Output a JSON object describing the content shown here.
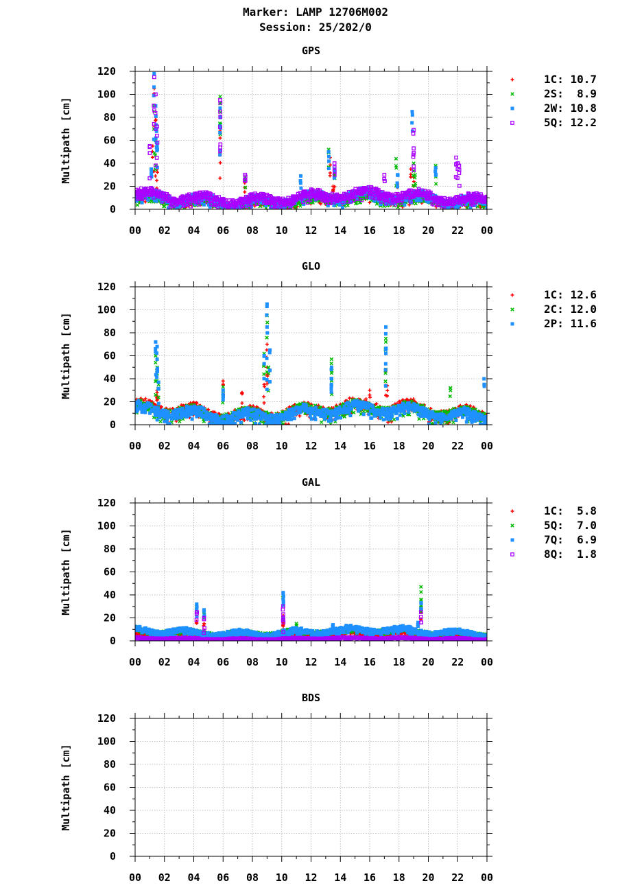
{
  "header": {
    "line1": "Marker: LAMP 12706M002",
    "line2": "Session: 25/202/0"
  },
  "chart_data": [
    {
      "type": "scatter",
      "title": "GPS",
      "ylabel": "Multipath [cm]",
      "xlabel": "",
      "xlim": [
        0,
        24
      ],
      "ylim": [
        0,
        120
      ],
      "xticks": [
        "00",
        "02",
        "04",
        "06",
        "08",
        "10",
        "12",
        "14",
        "16",
        "18",
        "20",
        "22",
        "00"
      ],
      "yticks": [
        0,
        20,
        40,
        60,
        80,
        100,
        120
      ],
      "grid": true,
      "legend_position": "right",
      "series": [
        {
          "name": "1C",
          "label": "1C: 10.7",
          "color": "#ff0000",
          "marker": "plus",
          "background_level": 8,
          "background_spread": 5,
          "spikes": [
            [
              1.2,
              55
            ],
            [
              1.3,
              105
            ],
            [
              1.4,
              80
            ],
            [
              1.5,
              35
            ],
            [
              5.8,
              68
            ],
            [
              5.8,
              62
            ],
            [
              7.5,
              25
            ],
            [
              13.3,
              45
            ],
            [
              13.5,
              20
            ],
            [
              13.6,
              35
            ],
            [
              18.8,
              35
            ],
            [
              19.0,
              28
            ],
            [
              17.9,
              22
            ]
          ]
        },
        {
          "name": "2S",
          "label": "2S:  8.9",
          "color": "#00bb00",
          "marker": "cross",
          "background_level": 7,
          "background_spread": 4,
          "spikes": [
            [
              1.3,
              90
            ],
            [
              1.4,
              60
            ],
            [
              5.8,
              98
            ],
            [
              5.8,
              92
            ],
            [
              7.5,
              28
            ],
            [
              13.2,
              52
            ],
            [
              13.6,
              30
            ],
            [
              17.8,
              44
            ],
            [
              19.0,
              40
            ],
            [
              19.1,
              30
            ],
            [
              20.5,
              38
            ]
          ]
        },
        {
          "name": "2W",
          "label": "2W: 10.8",
          "color": "#1e90ff",
          "marker": "square",
          "background_level": 10,
          "background_spread": 6,
          "spikes": [
            [
              1.1,
              35
            ],
            [
              1.3,
              118
            ],
            [
              1.4,
              90
            ],
            [
              1.45,
              70
            ],
            [
              1.5,
              55
            ],
            [
              5.8,
              88
            ],
            [
              5.8,
              80
            ],
            [
              11.3,
              29
            ],
            [
              13.2,
              50
            ],
            [
              13.6,
              35
            ],
            [
              18.9,
              85
            ],
            [
              17.9,
              30
            ],
            [
              20.5,
              36
            ]
          ]
        },
        {
          "name": "5Q",
          "label": "5Q: 12.2",
          "color": "#aa00ff",
          "marker": "open-square",
          "background_level": 11,
          "background_spread": 6,
          "spikes": [
            [
              1.0,
              55
            ],
            [
              1.3,
              115
            ],
            [
              1.4,
              100
            ],
            [
              1.5,
              72
            ],
            [
              5.8,
              95
            ],
            [
              5.8,
              85
            ],
            [
              7.5,
              30
            ],
            [
              13.6,
              40
            ],
            [
              17.0,
              30
            ],
            [
              19.0,
              69
            ],
            [
              19.0,
              53
            ],
            [
              21.9,
              45
            ],
            [
              22.0,
              40
            ],
            [
              22.1,
              38
            ]
          ]
        }
      ]
    },
    {
      "type": "scatter",
      "title": "GLO",
      "ylabel": "Multipath [cm]",
      "xlabel": "",
      "xlim": [
        0,
        24
      ],
      "ylim": [
        0,
        120
      ],
      "xticks": [
        "00",
        "02",
        "04",
        "06",
        "08",
        "10",
        "12",
        "14",
        "16",
        "18",
        "20",
        "22",
        "00"
      ],
      "yticks": [
        0,
        20,
        40,
        60,
        80,
        100,
        120
      ],
      "grid": true,
      "legend_position": "right",
      "series": [
        {
          "name": "1C",
          "label": "1C: 12.6",
          "color": "#ff0000",
          "marker": "plus",
          "background_level": 13,
          "background_spread": 8,
          "spikes": [
            [
              1.5,
              30
            ],
            [
              1.5,
              25
            ],
            [
              6.0,
              38
            ],
            [
              7.3,
              28
            ],
            [
              8.8,
              35
            ],
            [
              9.0,
              70
            ],
            [
              9.0,
              50
            ],
            [
              13.4,
              40
            ],
            [
              16.0,
              30
            ],
            [
              17.1,
              48
            ],
            [
              17.2,
              34
            ]
          ]
        },
        {
          "name": "2C",
          "label": "2C: 12.0",
          "color": "#00bb00",
          "marker": "cross",
          "background_level": 12,
          "background_spread": 7,
          "spikes": [
            [
              1.4,
              60
            ],
            [
              1.5,
              50
            ],
            [
              1.6,
              35
            ],
            [
              6.0,
              33
            ],
            [
              8.8,
              62
            ],
            [
              9.0,
              95
            ],
            [
              9.1,
              50
            ],
            [
              13.4,
              57
            ],
            [
              13.4,
              45
            ],
            [
              17.1,
              75
            ],
            [
              17.1,
              72
            ],
            [
              21.5,
              32
            ]
          ]
        },
        {
          "name": "2P",
          "label": "2P: 11.6",
          "color": "#1e90ff",
          "marker": "square",
          "background_level": 11,
          "background_spread": 7,
          "spikes": [
            [
              1.4,
              72
            ],
            [
              1.5,
              68
            ],
            [
              1.5,
              57
            ],
            [
              1.6,
              37
            ],
            [
              6.0,
              30
            ],
            [
              8.8,
              60
            ],
            [
              9.0,
              105
            ],
            [
              9.0,
              85
            ],
            [
              9.2,
              65
            ],
            [
              13.4,
              50
            ],
            [
              13.4,
              40
            ],
            [
              17.1,
              85
            ],
            [
              17.1,
              62
            ],
            [
              23.8,
              40
            ]
          ]
        }
      ]
    },
    {
      "type": "scatter",
      "title": "GAL",
      "ylabel": "Multipath [cm]",
      "xlabel": "",
      "xlim": [
        0,
        24
      ],
      "ylim": [
        0,
        120
      ],
      "xticks": [
        "00",
        "02",
        "04",
        "06",
        "08",
        "10",
        "12",
        "14",
        "16",
        "18",
        "20",
        "22",
        "00"
      ],
      "yticks": [
        0,
        20,
        40,
        60,
        80,
        100,
        120
      ],
      "grid": true,
      "legend_position": "right",
      "series": [
        {
          "name": "1C",
          "label": "1C:  5.8",
          "color": "#ff0000",
          "marker": "plus",
          "background_level": 5,
          "background_spread": 3,
          "spikes": [
            [
              4.2,
              17
            ],
            [
              4.7,
              15
            ],
            [
              10.1,
              22
            ],
            [
              10.1,
              14
            ],
            [
              19.5,
              30
            ]
          ]
        },
        {
          "name": "5Q",
          "label": "5Q:  7.0",
          "color": "#00bb00",
          "marker": "cross",
          "background_level": 8,
          "background_spread": 3,
          "spikes": [
            [
              4.2,
              30
            ],
            [
              4.7,
              25
            ],
            [
              10.1,
              38
            ],
            [
              11.0,
              15
            ],
            [
              19.5,
              47
            ],
            [
              19.5,
              36
            ]
          ]
        },
        {
          "name": "7Q",
          "label": "7Q:  6.9",
          "color": "#1e90ff",
          "marker": "square",
          "background_level": 8,
          "background_spread": 4,
          "spikes": [
            [
              4.2,
              32
            ],
            [
              4.7,
              27
            ],
            [
              10.1,
              42
            ],
            [
              10.1,
              36
            ],
            [
              19.5,
              33
            ],
            [
              13.5,
              14
            ],
            [
              19.3,
              16
            ]
          ]
        },
        {
          "name": "8Q",
          "label": "8Q:  1.8",
          "color": "#aa00ff",
          "marker": "open-square",
          "background_level": 2,
          "background_spread": 1,
          "spikes": [
            [
              4.2,
              25
            ],
            [
              4.7,
              20
            ],
            [
              10.1,
              30
            ],
            [
              10.1,
              20
            ],
            [
              19.5,
              25
            ]
          ]
        }
      ]
    },
    {
      "type": "scatter",
      "title": "BDS",
      "ylabel": "Multipath [cm]",
      "xlabel": "",
      "xlim": [
        0,
        24
      ],
      "ylim": [
        0,
        120
      ],
      "xticks": [
        "00",
        "02",
        "04",
        "06",
        "08",
        "10",
        "12",
        "14",
        "16",
        "18",
        "20",
        "22",
        "00"
      ],
      "yticks": [
        0,
        20,
        40,
        60,
        80,
        100,
        120
      ],
      "grid": true,
      "legend_position": "right",
      "series": []
    }
  ]
}
